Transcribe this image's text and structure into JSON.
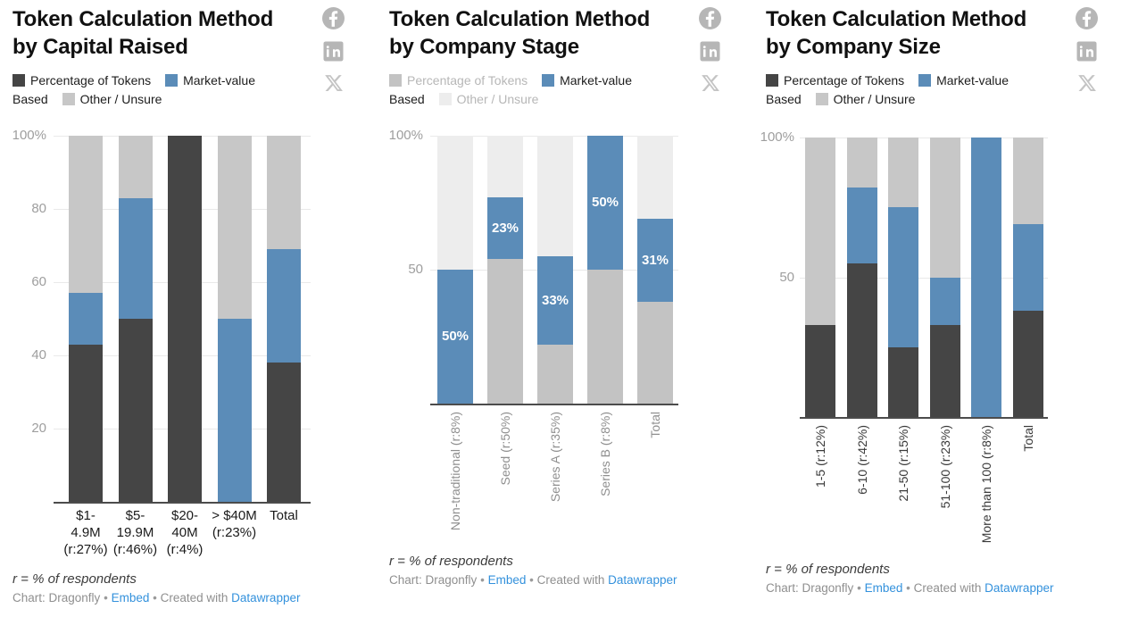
{
  "palette": {
    "tokens": "#454545",
    "market": "#5b8cb8",
    "other": "#c7c7c7",
    "tokens_faded": "#c3c3c3",
    "other_faded": "#ededed",
    "legend_text": "#1d1d1d",
    "legend_text_faded": "#b7b7b7",
    "bar_label_text": "#ffffff",
    "link": "#3391dc"
  },
  "social": {
    "facebook": "Share on Facebook",
    "linkedin": "Share on LinkedIn",
    "x": "Share on X"
  },
  "chart_data": [
    {
      "type": "bar",
      "subtype": "100pct-stacked-column",
      "title": "Token Calculation Method by Capital Raised",
      "title_lines": [
        "Token Calculation Method",
        "by Capital Raised"
      ],
      "legend": [
        {
          "label": "Percentage of Tokens",
          "series": "tokens",
          "faded": false
        },
        {
          "label": "Market-value Based",
          "series": "market",
          "faded": false
        },
        {
          "label": "Other / Unsure",
          "series": "other",
          "faded": false
        }
      ],
      "categories": [
        "$1-4.9M (r:27%)",
        "$5-19.9M (r:46%)",
        "$20-40M (r:4%)",
        "> $40M (r:23%)",
        "Total"
      ],
      "category_display": [
        [
          "$1-",
          "4.9M",
          "(r:27%)"
        ],
        [
          "$5-",
          "19.9M",
          "(r:46%)"
        ],
        [
          "$20-",
          "40M",
          "(r:4%)"
        ],
        [
          "> $40M",
          "(r:23%)"
        ],
        [
          "Total"
        ]
      ],
      "series": [
        {
          "name": "Percentage of Tokens",
          "key": "tokens",
          "values": [
            43,
            50,
            100,
            0,
            38
          ]
        },
        {
          "name": "Market-value Based",
          "key": "market",
          "values": [
            14,
            33,
            0,
            50,
            31
          ]
        },
        {
          "name": "Other / Unsure",
          "key": "other",
          "values": [
            43,
            17,
            0,
            50,
            31
          ]
        }
      ],
      "y_ticks": [
        {
          "label": "100%",
          "value": 100
        },
        {
          "label": "80",
          "value": 80
        },
        {
          "label": "60",
          "value": 60
        },
        {
          "label": "40",
          "value": 40
        },
        {
          "label": "20",
          "value": 20
        }
      ],
      "ylim": [
        0,
        100
      ],
      "grid": true,
      "legend_position": "top",
      "x_label_rotated": false,
      "footer": {
        "note": "r = % of respondents",
        "source": "Chart: Dragonfly",
        "sep": "•",
        "embed": "Embed",
        "created": "Created with",
        "tool": "Datawrapper"
      }
    },
    {
      "type": "bar",
      "subtype": "100pct-stacked-column",
      "title": "Token Calculation Method by Company Stage",
      "title_lines": [
        "Token Calculation Method",
        "by Company Stage"
      ],
      "highlighted_series": "Market-value Based",
      "legend": [
        {
          "label": "Percentage of Tokens",
          "series": "tokens",
          "faded": true
        },
        {
          "label": "Market-value Based",
          "series": "market",
          "faded": false
        },
        {
          "label": "Other / Unsure",
          "series": "other",
          "faded": true
        }
      ],
      "categories": [
        "Non-traditional (r:8%)",
        "Seed (r:50%)",
        "Series A (r:35%)",
        "Series B (r:8%)",
        "Total"
      ],
      "series": [
        {
          "name": "Percentage of Tokens",
          "key": "tokens",
          "values": [
            0,
            54,
            22,
            50,
            38
          ]
        },
        {
          "name": "Market-value Based",
          "key": "market",
          "values": [
            50,
            23,
            33,
            50,
            31
          ]
        },
        {
          "name": "Other / Unsure",
          "key": "other",
          "values": [
            50,
            23,
            45,
            0,
            31
          ]
        }
      ],
      "bar_value_labels": {
        "series": "Market-value Based",
        "values": [
          "50%",
          "23%",
          "33%",
          "50%",
          "31%"
        ]
      },
      "y_ticks": [
        {
          "label": "100%",
          "value": 100
        },
        {
          "label": "50",
          "value": 50
        }
      ],
      "ylim": [
        0,
        100
      ],
      "grid": true,
      "legend_position": "top",
      "x_label_rotated": true,
      "footer": {
        "note": "r = % of respondents",
        "source": "Chart: Dragonfly",
        "sep": "•",
        "embed": "Embed",
        "created": "Created with",
        "tool": "Datawrapper"
      }
    },
    {
      "type": "bar",
      "subtype": "100pct-stacked-column",
      "title": "Token Calculation Method by Company Size",
      "title_lines": [
        "Token Calculation Method",
        "by Company Size"
      ],
      "legend": [
        {
          "label": "Percentage of Tokens",
          "series": "tokens",
          "faded": false
        },
        {
          "label": "Market-value Based",
          "series": "market",
          "faded": false
        },
        {
          "label": "Other / Unsure",
          "series": "other",
          "faded": false
        }
      ],
      "categories": [
        "1-5 (r:12%)",
        "6-10 (r:42%)",
        "21-50 (r:15%)",
        "51-100 (r:23%)",
        "More than 100 (r:8%)",
        "Total"
      ],
      "series": [
        {
          "name": "Percentage of Tokens",
          "key": "tokens",
          "values": [
            33,
            55,
            25,
            33,
            0,
            38
          ]
        },
        {
          "name": "Market-value Based",
          "key": "market",
          "values": [
            0,
            27,
            50,
            17,
            100,
            31
          ]
        },
        {
          "name": "Other / Unsure",
          "key": "other",
          "values": [
            67,
            18,
            25,
            50,
            0,
            31
          ]
        }
      ],
      "y_ticks": [
        {
          "label": "100%",
          "value": 100
        },
        {
          "label": "50",
          "value": 50
        }
      ],
      "ylim": [
        0,
        100
      ],
      "grid": true,
      "legend_position": "top",
      "x_label_rotated": true,
      "footer": {
        "note": "r = % of respondents",
        "source": "Chart: Dragonfly",
        "sep": "•",
        "embed": "Embed",
        "created": "Created with",
        "tool": "Datawrapper"
      }
    }
  ]
}
